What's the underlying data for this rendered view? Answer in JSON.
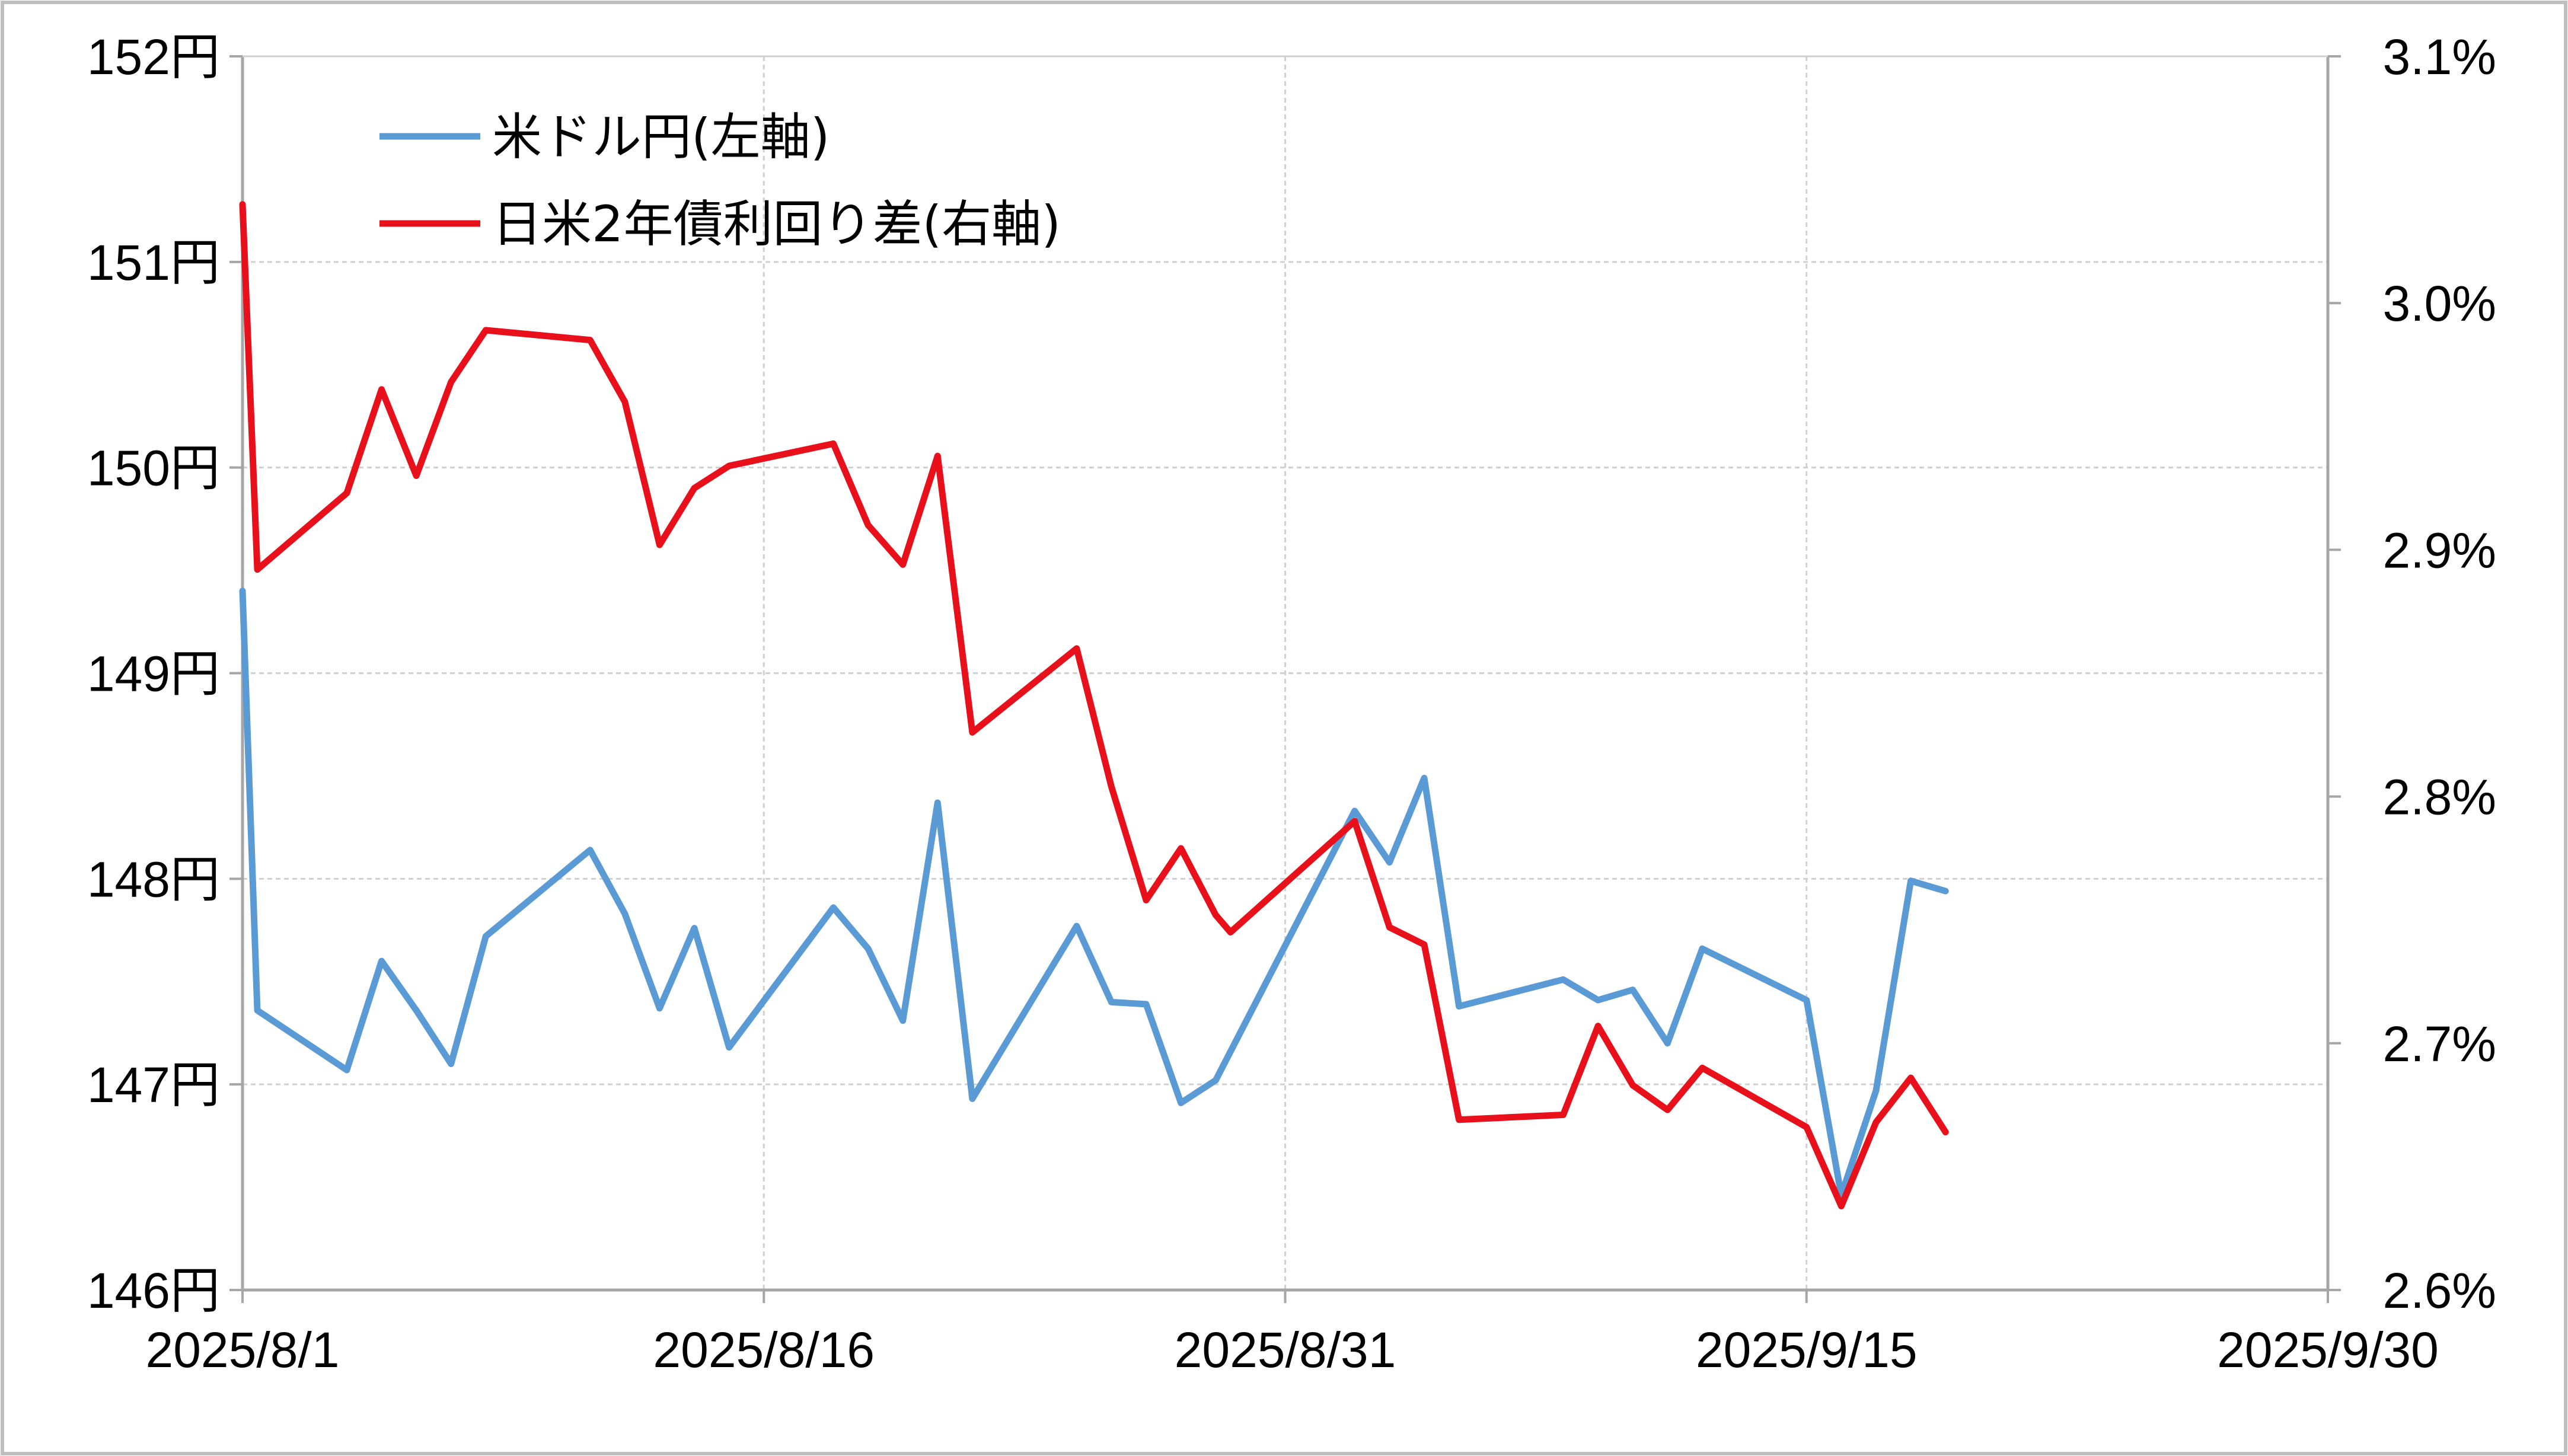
{
  "chart_data": {
    "type": "line",
    "x_ticks": [
      "2025/8/1",
      "2025/8/16",
      "2025/8/31",
      "2025/9/15",
      "2025/9/30"
    ],
    "y_left_ticks": [
      "146円",
      "147円",
      "148円",
      "149円",
      "150円",
      "151円",
      "152円"
    ],
    "y_right_ticks": [
      "2.6%",
      "2.7%",
      "2.8%",
      "2.9%",
      "3.0%",
      "3.1%"
    ],
    "y_left_range": [
      146,
      152
    ],
    "y_right_range": [
      2.6,
      3.1
    ],
    "grid": true,
    "legend_position": "top-left",
    "series": [
      {
        "name": "米ドル円(左軸)",
        "axis": "left",
        "color": "#5b9bd5",
        "points": [
          [
            "2025-08-01",
            149.4
          ],
          [
            "2025-08-01",
            147.36
          ],
          [
            "2025-08-04",
            147.07
          ],
          [
            "2025-08-05",
            147.6
          ],
          [
            "2025-08-06",
            147.36
          ],
          [
            "2025-08-07",
            147.1
          ],
          [
            "2025-08-08",
            147.72
          ],
          [
            "2025-08-11",
            148.14
          ],
          [
            "2025-08-12",
            147.83
          ],
          [
            "2025-08-13",
            147.37
          ],
          [
            "2025-08-14",
            147.76
          ],
          [
            "2025-08-15",
            147.18
          ],
          [
            "2025-08-18",
            147.86
          ],
          [
            "2025-08-19",
            147.66
          ],
          [
            "2025-08-20",
            147.31
          ],
          [
            "2025-08-21",
            148.37
          ],
          [
            "2025-08-22",
            146.93
          ],
          [
            "2025-08-25",
            147.77
          ],
          [
            "2025-08-26",
            147.4
          ],
          [
            "2025-08-27",
            147.39
          ],
          [
            "2025-08-28",
            146.91
          ],
          [
            "2025-08-29",
            147.02
          ],
          [
            "2025-08-29",
            147.16
          ],
          [
            "2025-09-02",
            148.33
          ],
          [
            "2025-09-03",
            148.08
          ],
          [
            "2025-09-04",
            148.49
          ],
          [
            "2025-09-05",
            147.38
          ],
          [
            "2025-09-08",
            147.51
          ],
          [
            "2025-09-09",
            147.41
          ],
          [
            "2025-09-10",
            147.46
          ],
          [
            "2025-09-11",
            147.2
          ],
          [
            "2025-09-12",
            147.66
          ],
          [
            "2025-09-15",
            147.41
          ],
          [
            "2025-09-16",
            146.46
          ],
          [
            "2025-09-17",
            146.97
          ],
          [
            "2025-09-18",
            147.99
          ],
          [
            "2025-09-19",
            147.94
          ]
        ]
      },
      {
        "name": "日米2年債利回り差(右軸)",
        "axis": "right",
        "color": "#e8101a",
        "points": [
          [
            "2025-08-01",
            3.04
          ],
          [
            "2025-08-01",
            2.892
          ],
          [
            "2025-08-04",
            2.923
          ],
          [
            "2025-08-05",
            2.965
          ],
          [
            "2025-08-06",
            2.93
          ],
          [
            "2025-08-07",
            2.968
          ],
          [
            "2025-08-08",
            2.989
          ],
          [
            "2025-08-11",
            2.985
          ],
          [
            "2025-08-12",
            2.96
          ],
          [
            "2025-08-13",
            2.902
          ],
          [
            "2025-08-14",
            2.925
          ],
          [
            "2025-08-15",
            2.934
          ],
          [
            "2025-08-18",
            2.943
          ],
          [
            "2025-08-19",
            2.91
          ],
          [
            "2025-08-20",
            2.894
          ],
          [
            "2025-08-21",
            2.938
          ],
          [
            "2025-08-22",
            2.826
          ],
          [
            "2025-08-25",
            2.86
          ],
          [
            "2025-08-26",
            2.804
          ],
          [
            "2025-08-27",
            2.758
          ],
          [
            "2025-08-28",
            2.779
          ],
          [
            "2025-08-29",
            2.752
          ],
          [
            "2025-08-29",
            2.745
          ],
          [
            "2025-09-02",
            2.79
          ],
          [
            "2025-09-03",
            2.747
          ],
          [
            "2025-09-04",
            2.74
          ],
          [
            "2025-09-05",
            2.669
          ],
          [
            "2025-09-08",
            2.671
          ],
          [
            "2025-09-09",
            2.707
          ],
          [
            "2025-09-10",
            2.683
          ],
          [
            "2025-09-11",
            2.673
          ],
          [
            "2025-09-12",
            2.69
          ],
          [
            "2025-09-15",
            2.666
          ],
          [
            "2025-09-16",
            2.634
          ],
          [
            "2025-09-17",
            2.668
          ],
          [
            "2025-09-18",
            2.686
          ],
          [
            "2025-09-19",
            2.664
          ]
        ]
      }
    ]
  }
}
